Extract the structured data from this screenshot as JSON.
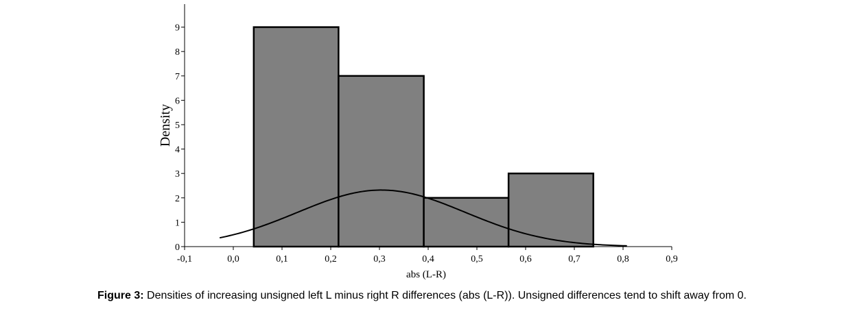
{
  "caption": {
    "label": "Figure 3:",
    "text": "Densities of increasing unsigned left L minus right R differences (abs (L-R)). Unsigned differences tend to shift away from 0."
  },
  "chart_data": {
    "type": "bar",
    "subtype": "histogram with fitted normal curve",
    "xlabel": "abs (L-R)",
    "ylabel": "Density",
    "xlim": [
      -0.1,
      0.9
    ],
    "ylim": [
      0,
      10
    ],
    "x_ticks": [
      -0.1,
      0.0,
      0.1,
      0.2,
      0.3,
      0.4,
      0.5,
      0.6,
      0.7,
      0.8,
      0.9
    ],
    "x_tick_labels": [
      "-0,1",
      "0,0",
      "0,1",
      "0,2",
      "0,3",
      "0,4",
      "0,5",
      "0,6",
      "0,7",
      "0,8",
      "0,9"
    ],
    "y_ticks": [
      0,
      1,
      2,
      3,
      4,
      5,
      6,
      7,
      8,
      9
    ],
    "y_tick_labels": [
      "0",
      "1",
      "2",
      "3",
      "4",
      "5",
      "6",
      "7",
      "8",
      "9"
    ],
    "bins": [
      {
        "x0": 0.042,
        "x1": 0.216,
        "value": 9
      },
      {
        "x0": 0.216,
        "x1": 0.391,
        "value": 7
      },
      {
        "x0": 0.391,
        "x1": 0.565,
        "value": 2
      },
      {
        "x0": 0.565,
        "x1": 0.739,
        "value": 3
      }
    ],
    "curve": {
      "type": "normal",
      "mean": 0.304,
      "sd": 0.172,
      "x_range": [
        -0.028,
        0.808
      ]
    },
    "grid": false,
    "bar_color": "#808080",
    "edge_color": "#000000",
    "curve_color": "#000000"
  }
}
